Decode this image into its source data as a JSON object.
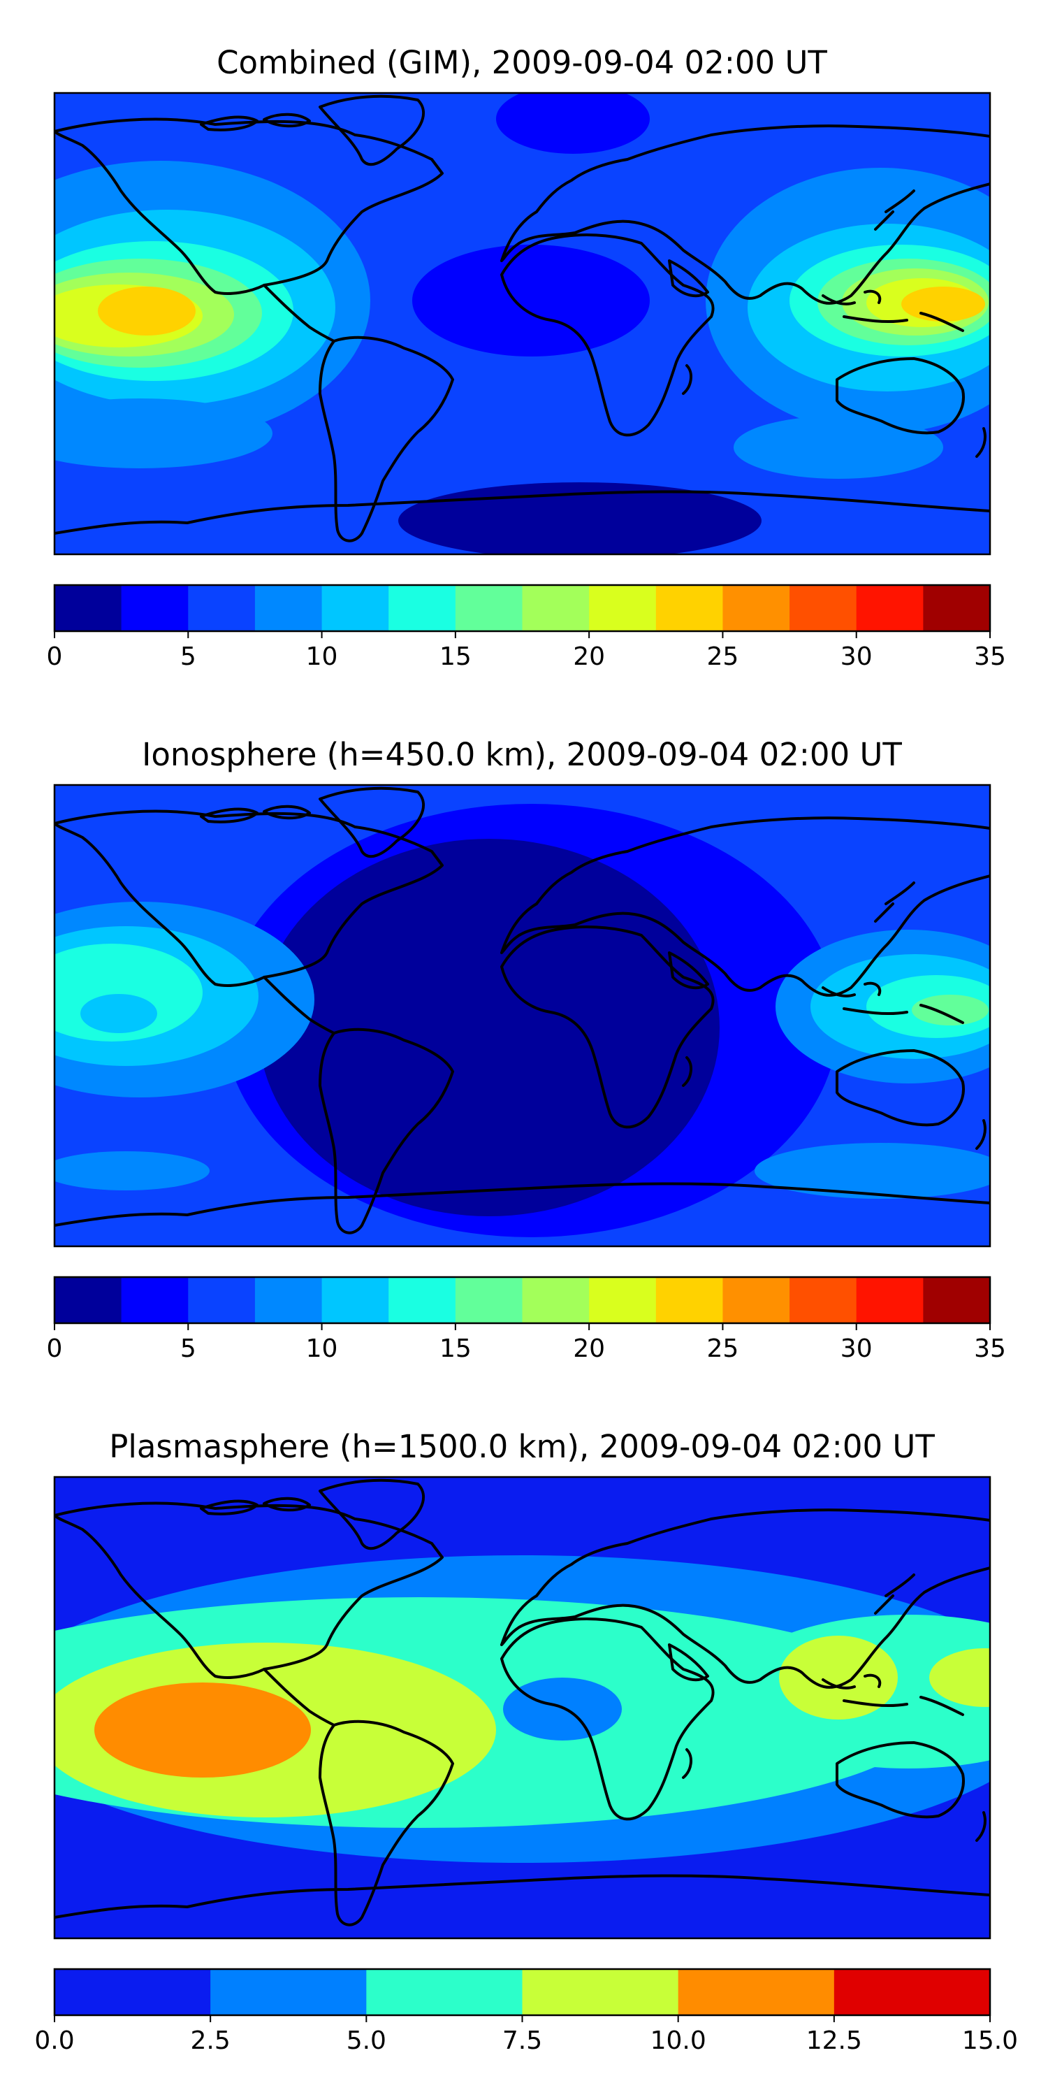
{
  "panels": [
    {
      "title": "Combined (GIM), 2009-09-04 02:00 UT",
      "colorbar": {
        "ticks": [
          "0",
          "5",
          "10",
          "15",
          "20",
          "25",
          "30",
          "35"
        ],
        "levels": [
          0,
          2.5,
          5,
          7.5,
          10,
          12.5,
          15,
          17.5,
          20,
          22.5,
          25,
          27.5,
          30,
          32.5,
          35
        ],
        "colors": [
          "#00009b",
          "#0000ff",
          "#0a43ff",
          "#0088ff",
          "#00c6ff",
          "#1affe2",
          "#62ff9a",
          "#a3ff5a",
          "#d9ff1e",
          "#ffd200",
          "#ff9000",
          "#ff5000",
          "#ff1400",
          "#a00000"
        ]
      }
    },
    {
      "title": "Ionosphere  (h=450.0 km), 2009-09-04 02:00 UT",
      "colorbar": {
        "ticks": [
          "0",
          "5",
          "10",
          "15",
          "20",
          "25",
          "30",
          "35"
        ],
        "levels": [
          0,
          2.5,
          5,
          7.5,
          10,
          12.5,
          15,
          17.5,
          20,
          22.5,
          25,
          27.5,
          30,
          32.5,
          35
        ],
        "colors": [
          "#00009b",
          "#0000ff",
          "#0a43ff",
          "#0088ff",
          "#00c6ff",
          "#1affe2",
          "#62ff9a",
          "#a3ff5a",
          "#d9ff1e",
          "#ffd200",
          "#ff9000",
          "#ff5000",
          "#ff1400",
          "#a00000"
        ]
      }
    },
    {
      "title": "Plasmasphere (h=1500.0 km), 2009-09-04 02:00 UT",
      "colorbar": {
        "ticks": [
          "0.0",
          "2.5",
          "5.0",
          "7.5",
          "10.0",
          "12.5",
          "15.0"
        ],
        "levels": [
          0,
          2.5,
          5,
          7.5,
          10,
          12.5,
          15
        ],
        "colors": [
          "#0a1cf0",
          "#0080ff",
          "#2cffca",
          "#c8ff38",
          "#ff8c00",
          "#e00000"
        ]
      }
    }
  ]
}
